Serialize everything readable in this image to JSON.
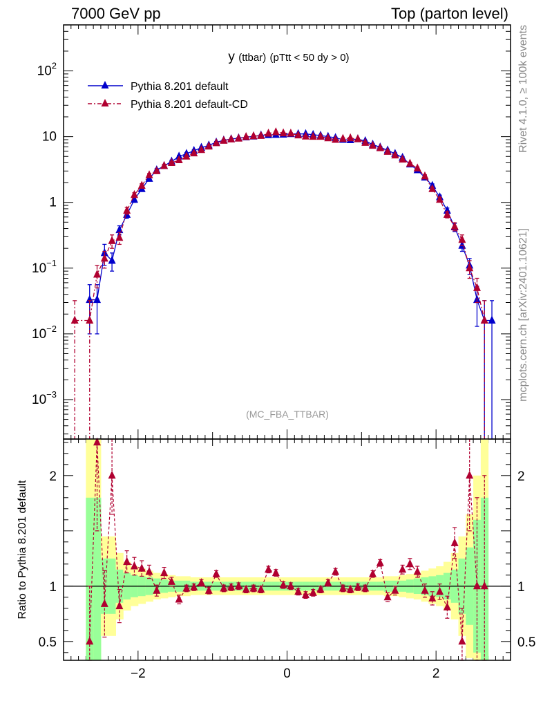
{
  "header": {
    "left": "7000 GeV pp",
    "right": "Top (parton level)"
  },
  "side_labels": {
    "rivet": "Rivet 4.1.0, ≥ 100k events",
    "mcplots": "mcplots.cern.ch [arXiv:2401.10621]"
  },
  "chart_data": {
    "type": "line",
    "title": "y (ttbar) (pTtt < 50 dy > 0)",
    "title_parts": {
      "var": "y",
      "sub": "(ttbar)",
      "cut": "(pTtt < 50 dy > 0)"
    },
    "watermark": "(MC_FBA_TTBAR)",
    "xlim": [
      -3.0,
      3.0
    ],
    "x_ticks": [
      -2,
      0,
      2
    ],
    "x_tick_labels": [
      "−2",
      "0",
      "2"
    ],
    "main_ylim_log10": [
      -3.6,
      2.7
    ],
    "main_y_ticks": [
      {
        "exp": "-3",
        "value": 0.001
      },
      {
        "exp": "-2",
        "value": 0.01
      },
      {
        "exp": "-1",
        "value": 0.1
      },
      {
        "label": "1",
        "value": 1
      },
      {
        "label": "10",
        "value": 10
      },
      {
        "exp": "2",
        "value": 100
      }
    ],
    "ratio_ylabel": "Ratio to Pythia 8.201 default",
    "ratio_ylim": [
      0.33,
      2.33
    ],
    "ratio_y_ticks": [
      "0.5",
      "1",
      "2"
    ],
    "legend": [
      {
        "name": "Pythia 8.201 default",
        "color": "#0000cc",
        "style": "solid"
      },
      {
        "name": "Pythia 8.201 default-CD",
        "color": "#b00030",
        "style": "dashdot"
      }
    ],
    "series": [
      {
        "name": "Pythia 8.201 default",
        "color": "#0000cc",
        "x": [
          -2.74,
          -2.65,
          -2.55,
          -2.45,
          -2.35,
          -2.25,
          -2.15,
          -2.05,
          -1.95,
          -1.85,
          -1.75,
          -1.65,
          -1.55,
          -1.45,
          -1.35,
          -1.25,
          -1.15,
          -1.05,
          -0.95,
          -0.85,
          -0.75,
          -0.65,
          -0.55,
          -0.45,
          -0.35,
          -0.25,
          -0.15,
          -0.05,
          0.05,
          0.15,
          0.25,
          0.35,
          0.45,
          0.55,
          0.65,
          0.75,
          0.85,
          0.95,
          1.05,
          1.15,
          1.25,
          1.35,
          1.45,
          1.55,
          1.65,
          1.75,
          1.85,
          1.95,
          2.05,
          2.15,
          2.25,
          2.35,
          2.45,
          2.55,
          2.65,
          2.75
        ],
        "y": [
          0,
          0.033,
          0.033,
          0.17,
          0.13,
          0.38,
          0.65,
          1.1,
          1.6,
          2.3,
          3.1,
          3.6,
          4.2,
          5.0,
          5.5,
          6.1,
          6.8,
          7.4,
          8.2,
          8.8,
          9.2,
          9.5,
          9.8,
          10.1,
          10.5,
          10.6,
          10.7,
          10.8,
          11.0,
          11.0,
          11.0,
          10.7,
          10.4,
          10.0,
          9.6,
          9.0,
          8.9,
          9.2,
          8.6,
          7.6,
          6.9,
          6.2,
          5.5,
          4.8,
          3.8,
          3.1,
          2.4,
          1.8,
          1.2,
          0.75,
          0.42,
          0.22,
          0.11,
          0.033,
          0.016,
          0.016
        ],
        "err": [
          0,
          0.023,
          0.023,
          0.06,
          0.04,
          0.06,
          0.08,
          0.1,
          0.12,
          0.14,
          0.16,
          0.17,
          0.18,
          0.2,
          0.2,
          0.2,
          0.22,
          0.23,
          0.24,
          0.25,
          0.25,
          0.25,
          0.26,
          0.26,
          0.26,
          0.27,
          0.27,
          0.27,
          0.27,
          0.27,
          0.27,
          0.27,
          0.26,
          0.26,
          0.25,
          0.25,
          0.25,
          0.25,
          0.24,
          0.23,
          0.22,
          0.21,
          0.2,
          0.18,
          0.16,
          0.15,
          0.13,
          0.11,
          0.09,
          0.07,
          0.06,
          0.04,
          0.03,
          0.02,
          0.016,
          0.016
        ]
      },
      {
        "name": "Pythia 8.201 default-CD",
        "color": "#b00030",
        "x": [
          -2.85,
          -2.65,
          -2.55,
          -2.45,
          -2.35,
          -2.25,
          -2.15,
          -2.05,
          -1.95,
          -1.85,
          -1.75,
          -1.65,
          -1.55,
          -1.45,
          -1.35,
          -1.25,
          -1.15,
          -1.05,
          -0.95,
          -0.85,
          -0.75,
          -0.65,
          -0.55,
          -0.45,
          -0.35,
          -0.25,
          -0.15,
          -0.05,
          0.05,
          0.15,
          0.25,
          0.35,
          0.45,
          0.55,
          0.65,
          0.75,
          0.85,
          0.95,
          1.05,
          1.15,
          1.25,
          1.35,
          1.45,
          1.55,
          1.65,
          1.75,
          1.85,
          1.95,
          2.05,
          2.15,
          2.25,
          2.35,
          2.45,
          2.55,
          2.65
        ],
        "y": [
          0.016,
          0.016,
          0.08,
          0.14,
          0.26,
          0.29,
          0.75,
          1.3,
          1.8,
          2.6,
          3.0,
          3.6,
          4.0,
          4.4,
          5.0,
          5.6,
          6.3,
          7.1,
          8.0,
          8.7,
          9.1,
          9.4,
          9.9,
          10.2,
          10.3,
          11.2,
          11.7,
          11.3,
          11.2,
          10.5,
          10.1,
          10.0,
          10.0,
          9.5,
          9.0,
          9.3,
          9.5,
          9.2,
          8.1,
          7.3,
          6.7,
          5.9,
          5.2,
          4.5,
          3.9,
          3.3,
          2.5,
          1.6,
          1.1,
          0.65,
          0.43,
          0.27,
          0.1,
          0.05,
          0.016
        ],
        "err": [
          0.016,
          0.016,
          0.03,
          0.04,
          0.06,
          0.06,
          0.09,
          0.1,
          0.12,
          0.15,
          0.16,
          0.17,
          0.18,
          0.19,
          0.2,
          0.21,
          0.22,
          0.23,
          0.24,
          0.25,
          0.25,
          0.26,
          0.26,
          0.27,
          0.27,
          0.27,
          0.28,
          0.27,
          0.27,
          0.27,
          0.26,
          0.26,
          0.26,
          0.25,
          0.25,
          0.25,
          0.25,
          0.25,
          0.24,
          0.23,
          0.22,
          0.21,
          0.2,
          0.18,
          0.17,
          0.15,
          0.13,
          0.11,
          0.09,
          0.07,
          0.06,
          0.05,
          0.03,
          0.02,
          0.016
        ]
      }
    ],
    "ratio": {
      "reference": "Pythia 8.201 default",
      "x": [
        -2.65,
        -2.55,
        -2.45,
        -2.35,
        -2.25,
        -2.15,
        -2.05,
        -1.95,
        -1.85,
        -1.75,
        -1.65,
        -1.55,
        -1.45,
        -1.35,
        -1.25,
        -1.15,
        -1.05,
        -0.95,
        -0.85,
        -0.75,
        -0.65,
        -0.55,
        -0.45,
        -0.35,
        -0.25,
        -0.15,
        -0.05,
        0.05,
        0.15,
        0.25,
        0.35,
        0.45,
        0.55,
        0.65,
        0.75,
        0.85,
        0.95,
        1.05,
        1.15,
        1.25,
        1.35,
        1.45,
        1.55,
        1.65,
        1.75,
        1.85,
        1.95,
        2.05,
        2.15,
        2.25,
        2.35,
        2.45,
        2.55,
        2.65
      ],
      "values": [
        0.5,
        2.3,
        0.84,
        2.0,
        0.82,
        1.22,
        1.18,
        1.16,
        1.13,
        0.96,
        1.12,
        1.04,
        0.88,
        0.98,
        0.99,
        1.03,
        0.96,
        1.11,
        0.98,
        0.99,
        1.0,
        0.97,
        0.98,
        0.97,
        1.15,
        1.12,
        1.01,
        1.0,
        0.95,
        0.92,
        0.94,
        0.97,
        1.03,
        1.13,
        0.98,
        0.97,
        0.99,
        0.98,
        1.11,
        1.21,
        0.9,
        0.96,
        1.15,
        1.2,
        1.13,
        0.96,
        0.89,
        0.95,
        0.81,
        1.39,
        0.5,
        2.0,
        1.0,
        1.0
      ],
      "errors": [
        0.5,
        0.8,
        0.3,
        0.35,
        0.15,
        0.1,
        0.08,
        0.07,
        0.06,
        0.05,
        0.05,
        0.04,
        0.04,
        0.03,
        0.03,
        0.03,
        0.03,
        0.03,
        0.03,
        0.03,
        0.03,
        0.03,
        0.03,
        0.03,
        0.03,
        0.03,
        0.03,
        0.03,
        0.03,
        0.03,
        0.03,
        0.03,
        0.03,
        0.03,
        0.03,
        0.03,
        0.03,
        0.03,
        0.03,
        0.03,
        0.04,
        0.04,
        0.04,
        0.05,
        0.05,
        0.06,
        0.06,
        0.07,
        0.1,
        0.14,
        0.3,
        0.5,
        0.8,
        1.0
      ],
      "green_band": [
        0.8,
        0.8,
        0.25,
        0.25,
        0.15,
        0.12,
        0.1,
        0.09,
        0.08,
        0.07,
        0.06,
        0.05,
        0.05,
        0.05,
        0.04,
        0.04,
        0.04,
        0.04,
        0.04,
        0.04,
        0.04,
        0.04,
        0.04,
        0.04,
        0.04,
        0.04,
        0.04,
        0.04,
        0.04,
        0.04,
        0.04,
        0.04,
        0.04,
        0.04,
        0.04,
        0.04,
        0.04,
        0.04,
        0.04,
        0.04,
        0.05,
        0.05,
        0.05,
        0.06,
        0.07,
        0.08,
        0.09,
        0.1,
        0.12,
        0.15,
        0.25,
        0.35,
        0.6,
        0.8
      ],
      "yellow_band": [
        1.5,
        1.5,
        0.45,
        0.45,
        0.3,
        0.22,
        0.18,
        0.16,
        0.14,
        0.12,
        0.11,
        0.1,
        0.09,
        0.09,
        0.08,
        0.08,
        0.08,
        0.08,
        0.08,
        0.08,
        0.08,
        0.08,
        0.08,
        0.08,
        0.08,
        0.08,
        0.08,
        0.08,
        0.08,
        0.08,
        0.08,
        0.08,
        0.08,
        0.08,
        0.08,
        0.08,
        0.08,
        0.08,
        0.08,
        0.08,
        0.09,
        0.09,
        0.1,
        0.11,
        0.12,
        0.14,
        0.16,
        0.18,
        0.22,
        0.3,
        0.45,
        0.65,
        1.0,
        1.5
      ]
    }
  }
}
